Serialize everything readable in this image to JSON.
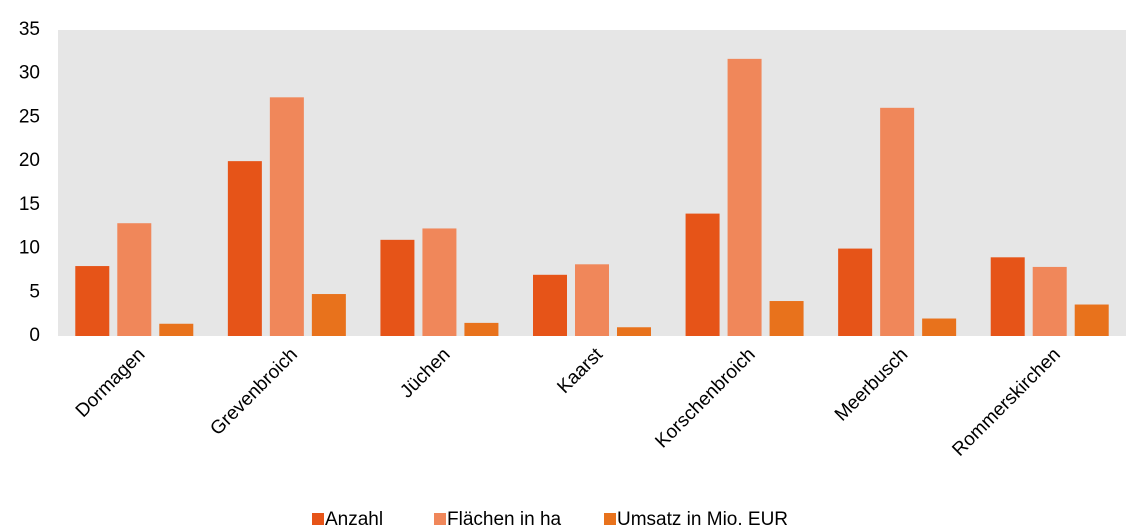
{
  "chart_data": {
    "type": "bar",
    "categories": [
      "Dormagen",
      "Grevenbroich",
      "Jüchen",
      "Kaarst",
      "Korschenbroich",
      "Meerbusch",
      "Rommerskirchen"
    ],
    "series": [
      {
        "name": "Anzahl",
        "color": "#e65418",
        "values": [
          8,
          20,
          11,
          7,
          14,
          10,
          9
        ]
      },
      {
        "name": "Flächen in ha",
        "color": "#f0875a",
        "values": [
          12.9,
          27.3,
          12.3,
          8.2,
          31.7,
          26.1,
          7.9
        ]
      },
      {
        "name": "Umsatz in Mio. EUR",
        "color": "#e8721c",
        "values": [
          1.4,
          4.8,
          1.5,
          1.0,
          4.0,
          2.0,
          3.6
        ]
      }
    ],
    "ylim": [
      0,
      35
    ],
    "yticks": [
      0,
      5,
      10,
      15,
      20,
      25,
      30,
      35
    ],
    "grid": false,
    "legend": "bottom"
  }
}
